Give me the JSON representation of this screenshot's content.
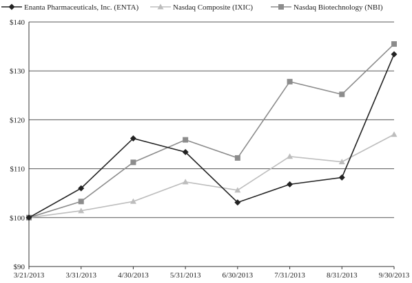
{
  "chart_data": {
    "type": "line",
    "title": "",
    "xlabel": "",
    "ylabel": "",
    "categories": [
      "3/21/2013",
      "3/31/2013",
      "4/30/2013",
      "5/31/2013",
      "6/30/2013",
      "7/31/2013",
      "8/31/2013",
      "9/30/2013"
    ],
    "y_ticks": [
      "$90",
      "$100",
      "$110",
      "$120",
      "$130",
      "$140"
    ],
    "ylim": [
      90,
      140
    ],
    "grid": true,
    "legend": "top",
    "series": [
      {
        "name": "Enanta Pharmaceuticals, Inc. (ENTA)",
        "marker": "diamond",
        "color": "#222222",
        "values": [
          100,
          106,
          116.2,
          113.4,
          103.1,
          106.8,
          108.2,
          133.4
        ]
      },
      {
        "name": "Nasdaq Composite (IXIC)",
        "marker": "triangle",
        "color": "#bdbdbd",
        "values": [
          100,
          101.4,
          103.3,
          107.3,
          105.6,
          112.5,
          111.4,
          117
        ]
      },
      {
        "name": "Nasdaq Biotechnology (NBI)",
        "marker": "square",
        "color": "#8c8c8c",
        "values": [
          100,
          103.3,
          111.3,
          115.9,
          112.2,
          127.8,
          125.2,
          135.5
        ]
      }
    ]
  }
}
